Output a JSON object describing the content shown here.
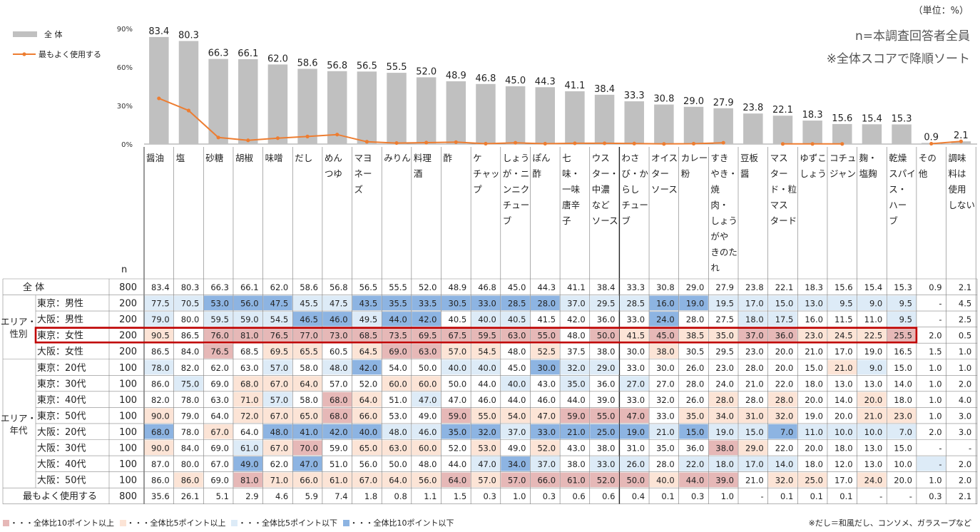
{
  "unit_label": "（単位：%）",
  "notes": [
    "n=本調査回答者全員",
    "※全体スコアで降順ソート"
  ],
  "n_header": "n",
  "colors": {
    "bar": "#c0c0c0",
    "line": "#ed7d31",
    "up10": "#e6b8b7",
    "up5": "#fce4d6",
    "down5": "#ddebf7",
    "down10": "#8db4e2",
    "highlight": "#c00000"
  },
  "chart_data": {
    "type": "bar",
    "ylim": [
      0,
      90
    ],
    "yticks": [
      "0%",
      "30%",
      "60%",
      "90%"
    ],
    "categories": [
      "醤油",
      "塩",
      "砂糖",
      "胡椒",
      "味噌",
      "だし",
      "めんつゆ",
      "マヨネーズ",
      "みりん",
      "料理酒",
      "酢",
      "ケチャップ",
      "しょうが・ニンニクチューブ",
      "ぽん酢",
      "七味・一味唐辛子",
      "ウスター・中濃などソース",
      "わさび・からしチューブ",
      "オイスターソース",
      "カレー粉",
      "すきやき・焼肉・しょうがやきのたれ",
      "豆板醤",
      "マスタード・粒マスタード",
      "ゆずこしょう",
      "コチュジャン",
      "麹・塩麹",
      "乾燥スパイス・ハーブ",
      "その他",
      "調味料は使用しない"
    ],
    "category_lines": [
      [
        "醤油"
      ],
      [
        "塩"
      ],
      [
        "砂糖"
      ],
      [
        "胡椒"
      ],
      [
        "味噌"
      ],
      [
        "だし"
      ],
      [
        "めん",
        "つゆ"
      ],
      [
        "マヨ",
        "ネー",
        "ズ"
      ],
      [
        "みりん"
      ],
      [
        "料理",
        "酒"
      ],
      [
        "酢"
      ],
      [
        "ケ",
        "チャッ",
        "プ"
      ],
      [
        "しょう",
        "が・ニ",
        "ンニク",
        "チュー",
        "ブ"
      ],
      [
        "ぽん",
        "酢"
      ],
      [
        "七",
        "味・",
        "一味",
        "唐辛",
        "子"
      ],
      [
        "ウス",
        "ター・",
        "中濃",
        "など",
        "ソース"
      ],
      [
        "わさ",
        "び・か",
        "らし",
        "チュー",
        "ブ"
      ],
      [
        "オイス",
        "ター",
        "ソース"
      ],
      [
        "カレー",
        "粉"
      ],
      [
        "すき",
        "やき・",
        "焼",
        "肉・",
        "しょう",
        "がや",
        "きのた",
        "れ"
      ],
      [
        "豆板",
        "醤"
      ],
      [
        "マス",
        "ター",
        "ド・粒",
        "マス",
        "タード"
      ],
      [
        "ゆずこ",
        "しょう"
      ],
      [
        "コチュ",
        "ジャン"
      ],
      [
        "麹・",
        "塩麹"
      ],
      [
        "乾燥",
        "スパイ",
        "ス・",
        "ハー",
        "ブ"
      ],
      [
        "その",
        "他"
      ],
      [
        "調味",
        "料は",
        "使用",
        "しない"
      ]
    ],
    "series": [
      {
        "name": "全 体",
        "type": "bar",
        "values": [
          83.4,
          80.3,
          66.3,
          66.1,
          62.0,
          58.6,
          56.8,
          56.5,
          55.5,
          52.0,
          48.9,
          46.8,
          45.0,
          44.3,
          41.1,
          38.4,
          33.3,
          30.8,
          29.0,
          27.9,
          23.8,
          22.1,
          18.3,
          15.6,
          15.4,
          15.3,
          0.9,
          2.1
        ]
      },
      {
        "name": "最もよく使用する",
        "type": "line",
        "values": [
          35.6,
          26.1,
          5.1,
          2.9,
          4.6,
          5.9,
          7.4,
          1.8,
          0.8,
          1.1,
          1.5,
          0.3,
          1.0,
          0.3,
          0.6,
          0.6,
          0.4,
          0.1,
          0.3,
          1.0,
          null,
          0.1,
          0.1,
          0.1,
          null,
          null,
          0.3,
          2.1
        ]
      }
    ],
    "table": {
      "groups": [
        {
          "label": "エリア・性別",
          "start": 1,
          "end": 4
        },
        {
          "label": "エリア・年代",
          "start": 5,
          "end": 12
        }
      ],
      "highlight_row": 3,
      "rows": [
        {
          "label": "全 体",
          "n": "800",
          "values": [
            "83.4",
            "80.3",
            "66.3",
            "66.1",
            "62.0",
            "58.6",
            "56.8",
            "56.5",
            "55.5",
            "52.0",
            "48.9",
            "46.8",
            "45.0",
            "44.3",
            "41.1",
            "38.4",
            "33.3",
            "30.8",
            "29.0",
            "27.9",
            "23.8",
            "22.1",
            "18.3",
            "15.6",
            "15.4",
            "15.3",
            "0.9",
            "2.1"
          ],
          "marks": "............................"
        },
        {
          "label": "東京：男性",
          "n": "200",
          "values": [
            "77.5",
            "70.5",
            "53.0",
            "56.0",
            "47.5",
            "45.5",
            "47.5",
            "43.5",
            "35.5",
            "33.5",
            "30.5",
            "33.0",
            "28.5",
            "28.0",
            "37.0",
            "29.5",
            "28.5",
            "16.0",
            "19.0",
            "19.5",
            "17.0",
            "15.0",
            "13.0",
            "9.5",
            "9.0",
            "9.5",
            "-",
            "4.5"
          ],
          "marks": "bbBBBbbBBBBBBBbbbBBbbbbbbb.."
        },
        {
          "label": "大阪：男性",
          "n": "200",
          "values": [
            "79.0",
            "80.0",
            "59.5",
            "59.0",
            "54.5",
            "46.5",
            "46.0",
            "49.5",
            "44.0",
            "42.0",
            "40.5",
            "40.0",
            "40.5",
            "41.5",
            "42.0",
            "36.0",
            "33.0",
            "24.0",
            "28.0",
            "27.5",
            "18.0",
            "17.5",
            "16.0",
            "11.5",
            "11.0",
            "9.5",
            "-",
            "2.5"
          ],
          "marks": "b.bbbBBbBB.bb....B..bb...b.."
        },
        {
          "label": "東京：女性",
          "n": "200",
          "values": [
            "90.5",
            "86.5",
            "76.0",
            "81.0",
            "76.5",
            "77.0",
            "73.0",
            "68.5",
            "73.5",
            "69.5",
            "67.5",
            "59.5",
            "63.0",
            "55.0",
            "48.0",
            "50.0",
            "41.5",
            "45.0",
            "38.5",
            "35.0",
            "37.0",
            "36.0",
            "23.0",
            "24.5",
            "22.5",
            "25.5",
            "2.0",
            "0.5"
          ],
          "marks": "rpRRRRRRRRRRRRpRrRrrRRrrrR.."
        },
        {
          "label": "大阪：女性",
          "n": "200",
          "values": [
            "86.5",
            "84.0",
            "76.5",
            "68.5",
            "69.5",
            "65.5",
            "60.5",
            "64.5",
            "69.0",
            "63.0",
            "57.0",
            "54.5",
            "48.0",
            "52.5",
            "37.5",
            "38.0",
            "30.0",
            "38.0",
            "30.5",
            "29.5",
            "23.0",
            "20.0",
            "21.0",
            "17.0",
            "19.0",
            "16.5",
            "1.5",
            "1.0"
          ],
          "marks": "..R.rr.rRRrr.r...r.........."
        },
        {
          "label": "東京：20代",
          "n": "100",
          "values": [
            "78.0",
            "82.0",
            "62.0",
            "63.0",
            "57.0",
            "58.0",
            "48.0",
            "42.0",
            "54.0",
            "50.0",
            "40.0",
            "40.0",
            "45.0",
            "30.0",
            "32.0",
            "29.0",
            "33.0",
            "30.0",
            "26.0",
            "23.0",
            "28.0",
            "20.0",
            "15.0",
            "21.0",
            "9.0",
            "15.0",
            "1.0",
            "1.0"
          ],
          "marks": "b...b.bB..bb.Bbb.......rb..."
        },
        {
          "label": "東京：30代",
          "n": "100",
          "values": [
            "86.0",
            "75.0",
            "69.0",
            "68.0",
            "67.0",
            "64.0",
            "57.0",
            "52.0",
            "60.0",
            "60.0",
            "50.0",
            "44.0",
            "40.0",
            "43.0",
            "35.0",
            "36.0",
            "27.0",
            "27.0",
            "28.0",
            "24.0",
            "21.0",
            "22.0",
            "18.0",
            "13.0",
            "13.0",
            "14.0",
            "1.0",
            "2.0"
          ],
          "marks": ".b.rrr..rr..b.b.b..........."
        },
        {
          "label": "東京：40代",
          "n": "100",
          "values": [
            "82.0",
            "78.0",
            "63.0",
            "71.0",
            "57.0",
            "58.0",
            "68.0",
            "64.0",
            "51.0",
            "47.0",
            "47.0",
            "46.0",
            "44.0",
            "46.0",
            "44.0",
            "39.0",
            "33.0",
            "32.0",
            "26.0",
            "28.0",
            "28.0",
            "28.0",
            "20.0",
            "14.0",
            "20.0",
            "18.0",
            "1.0",
            "4.0"
          ],
          "marks": "...rb.Rr.b.........r.r..r..."
        },
        {
          "label": "東京：50代",
          "n": "100",
          "values": [
            "90.0",
            "79.0",
            "64.0",
            "72.0",
            "67.0",
            "65.0",
            "68.0",
            "66.0",
            "53.0",
            "49.0",
            "59.0",
            "55.0",
            "54.0",
            "47.0",
            "59.0",
            "55.0",
            "47.0",
            "33.0",
            "35.0",
            "34.0",
            "31.0",
            "32.0",
            "19.0",
            "20.0",
            "21.0",
            "23.0",
            "1.0",
            "3.0"
          ],
          "marks": "r..rrrRr..RrrrRRR.rrrr..rr.."
        },
        {
          "label": "大阪：20代",
          "n": "100",
          "values": [
            "68.0",
            "78.0",
            "67.0",
            "64.0",
            "48.0",
            "41.0",
            "42.0",
            "40.0",
            "48.0",
            "46.0",
            "35.0",
            "32.0",
            "37.0",
            "33.0",
            "21.0",
            "25.0",
            "19.0",
            "21.0",
            "15.0",
            "19.0",
            "15.0",
            "7.0",
            "11.0",
            "10.0",
            "10.0",
            "7.0",
            "2.0",
            "3.0"
          ],
          "marks": "B.r.BBBBbbBBbBBBBbBbbBbbbb.."
        },
        {
          "label": "大阪：30代",
          "n": "100",
          "values": [
            "90.0",
            "84.0",
            "69.0",
            "61.0",
            "67.0",
            "70.0",
            "59.0",
            "65.0",
            "63.0",
            "60.0",
            "52.0",
            "53.0",
            "49.0",
            "52.0",
            "43.0",
            "38.0",
            "31.0",
            "35.0",
            "36.0",
            "38.0",
            "29.0",
            "22.0",
            "20.0",
            "18.0",
            "13.0",
            "15.0",
            "-",
            "-"
          ],
          "marks": "r..brR.rrr.r.r.....Rr......."
        },
        {
          "label": "大阪：40代",
          "n": "100",
          "values": [
            "87.0",
            "80.0",
            "67.0",
            "49.0",
            "62.0",
            "47.0",
            "51.0",
            "56.0",
            "50.0",
            "48.0",
            "44.0",
            "47.0",
            "34.0",
            "37.0",
            "38.0",
            "33.0",
            "26.0",
            "28.0",
            "22.0",
            "18.0",
            "17.0",
            "14.0",
            "18.0",
            "12.0",
            "13.0",
            "10.0",
            "-",
            "2.0"
          ],
          "marks": "...B.B.....bBb.bb.bbbb....b."
        },
        {
          "label": "大阪：50代",
          "n": "100",
          "values": [
            "86.0",
            "86.0",
            "69.0",
            "81.0",
            "71.0",
            "66.0",
            "61.0",
            "67.0",
            "64.0",
            "56.0",
            "64.0",
            "57.0",
            "57.0",
            "66.0",
            "61.0",
            "52.0",
            "50.0",
            "40.0",
            "44.0",
            "39.0",
            "21.0",
            "32.0",
            "25.0",
            "17.0",
            "24.0",
            "20.0",
            "1.0",
            "2.0"
          ],
          "marks": ".r.RrrrrrrRrRRRRRrRR.rr.r..."
        },
        {
          "label": "最もよく使用する",
          "n": "800",
          "values": [
            "35.6",
            "26.1",
            "5.1",
            "2.9",
            "4.6",
            "5.9",
            "7.4",
            "1.8",
            "0.8",
            "1.1",
            "1.5",
            "0.3",
            "1.0",
            "0.3",
            "0.6",
            "0.6",
            "0.4",
            "0.1",
            "0.3",
            "1.0",
            "-",
            "0.1",
            "0.1",
            "0.1",
            "-",
            "-",
            "0.3",
            "2.1"
          ],
          "marks": "............................"
        }
      ]
    }
  },
  "legend_footer": [
    "・・・全体比10ポイント以上",
    "・・・全体比5ポイント以上",
    "・・・全体比5ポイント以下",
    "・・・全体比10ポイント以下"
  ],
  "footnote": "※だし＝和風だし、コンソメ、ガラスープなど"
}
